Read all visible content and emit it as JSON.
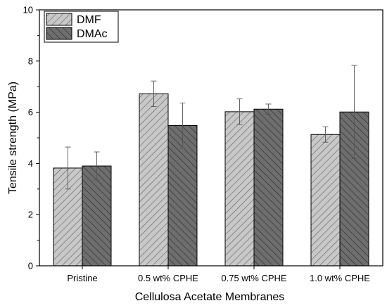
{
  "chart_data": {
    "type": "bar",
    "categories": [
      "Pristine",
      "0.5 wt% CPHE",
      "0.75 wt% CPHE",
      "1.0 wt% CPHE"
    ],
    "series": [
      {
        "name": "DMF",
        "values": [
          3.82,
          6.72,
          6.02,
          5.13
        ],
        "error": [
          0.82,
          0.5,
          0.5,
          0.3
        ],
        "fill": "#c8c8c8",
        "pattern": "hatch"
      },
      {
        "name": "DMAc",
        "values": [
          3.9,
          5.48,
          6.12,
          6.01
        ],
        "error": [
          0.55,
          0.88,
          0.2,
          1.82
        ],
        "fill": "#6e6e6e",
        "pattern": "hatch"
      }
    ],
    "xlabel": "Cellulosa Acetate Membranes",
    "ylabel": "Tensile strength (MPa)",
    "ylim": [
      0,
      10
    ],
    "yticks": [
      "0",
      "2",
      "4",
      "6",
      "8",
      "10"
    ],
    "legend_position": "top-left",
    "grid": false
  }
}
